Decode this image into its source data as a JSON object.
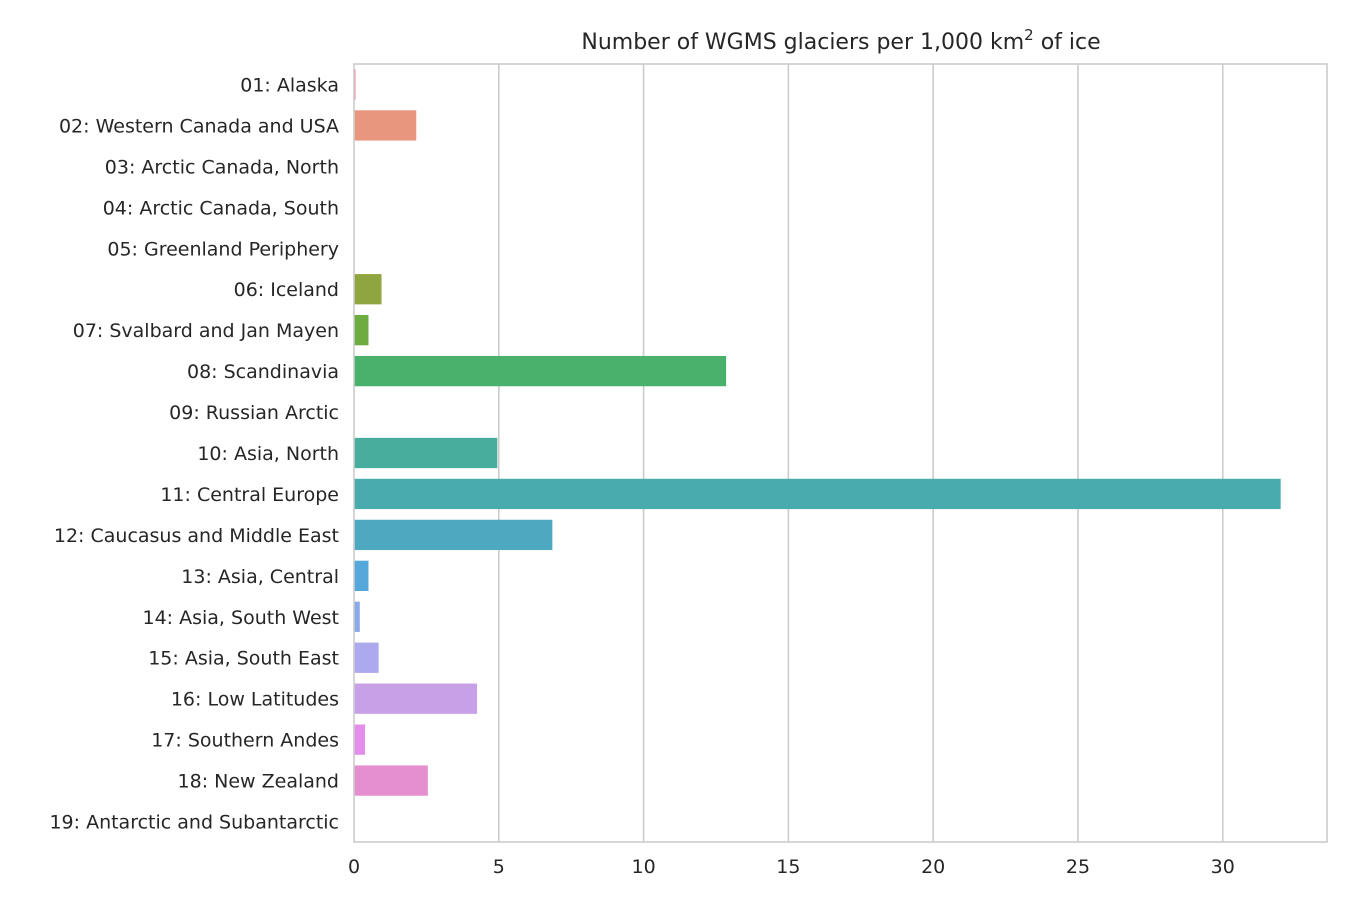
{
  "chart_data": {
    "type": "bar",
    "orientation": "horizontal",
    "title": "Number of WGMS glaciers per 1,000 km",
    "title_superscript": "2",
    "title_suffix": " of ice",
    "xlabel": "",
    "ylabel": "",
    "xlim": [
      0,
      33.6
    ],
    "xticks": [
      0,
      5,
      10,
      15,
      20,
      25,
      30
    ],
    "grid": "vertical",
    "categories": [
      "01: Alaska",
      "02: Western Canada and USA",
      "03: Arctic Canada, North",
      "04: Arctic Canada, South",
      "05: Greenland Periphery",
      "06: Iceland",
      "07: Svalbard and Jan Mayen",
      "08: Scandinavia",
      "09: Russian Arctic",
      "10: Asia, North",
      "11: Central Europe",
      "12: Caucasus and Middle East",
      "13: Asia, Central",
      "14: Asia, South West",
      "15: Asia, South East",
      "16: Low Latitudes",
      "17: Southern Andes",
      "18: New Zealand",
      "19: Antarctic and Subantarctic"
    ],
    "values": [
      0.05,
      2.15,
      0,
      0,
      0,
      0.95,
      0.5,
      12.85,
      0,
      4.95,
      32.0,
      6.85,
      0.5,
      0.2,
      0.85,
      4.25,
      0.38,
      2.55,
      0
    ],
    "colors": [
      "#f77189",
      "#e8977e",
      "#d1a02e",
      "#b8a830",
      "#9dad31",
      "#8fa640",
      "#6cac40",
      "#4ab16d",
      "#4aaf8e",
      "#49ad9e",
      "#4aabae",
      "#4ea9c0",
      "#55a8d9",
      "#8aa9e8",
      "#ada9ee",
      "#c8a0e8",
      "#e48ded",
      "#e58fd0",
      "#f5799f"
    ]
  }
}
